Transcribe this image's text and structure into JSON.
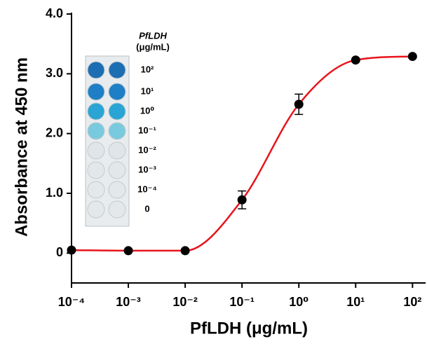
{
  "chart_data": {
    "type": "scatter",
    "xlabel": "PfLDH (μg/mL)",
    "ylabel": "Absorbance at 450 nm",
    "x": [
      0.0001,
      0.001,
      0.01,
      0.1,
      1,
      10,
      100
    ],
    "series": [
      {
        "values": [
          0.05,
          0.04,
          0.04,
          0.89,
          2.49,
          3.23,
          3.29
        ],
        "errors": [
          null,
          null,
          null,
          0.15,
          0.17,
          null,
          null
        ],
        "color": "#000000",
        "line_color": "#e8141b"
      }
    ],
    "xscale": "log",
    "xlim": [
      0.0001,
      170
    ],
    "xticks": [
      {
        "value": 0.0001,
        "label": "10⁻⁴"
      },
      {
        "value": 0.001,
        "label": "10⁻³"
      },
      {
        "value": 0.01,
        "label": "10⁻²"
      },
      {
        "value": 0.1,
        "label": "10⁻¹"
      },
      {
        "value": 1,
        "label": "10⁰"
      },
      {
        "value": 10,
        "label": "10¹"
      },
      {
        "value": 100,
        "label": "10²"
      }
    ],
    "ylim": [
      -0.5,
      4.0
    ],
    "yticks": [
      0,
      {
        "value": 1,
        "label": "1.0"
      },
      {
        "value": 2,
        "label": "2.0"
      },
      {
        "value": 3,
        "label": "3.0"
      },
      {
        "value": 4,
        "label": "4.0"
      }
    ],
    "inset": {
      "title": "PfLDH",
      "unit": "(μg/mL)",
      "labels": [
        "10²",
        "10¹",
        "10⁰",
        "10⁻¹",
        "10⁻²",
        "10⁻³",
        "10⁻⁴",
        "0"
      ]
    }
  }
}
